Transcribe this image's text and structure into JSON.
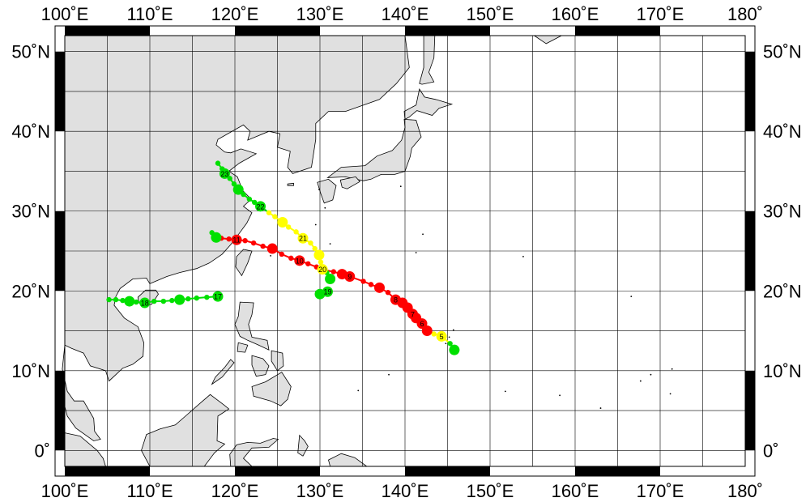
{
  "map": {
    "lon_range": [
      100,
      180
    ],
    "lat_range": [
      -2,
      52
    ],
    "grid_step_deg": 5,
    "label_step_deg": 10,
    "colors": {
      "land": "#e0e0e0",
      "ocean": "#ffffff",
      "grid": "#000000"
    },
    "top_lon_labels": [
      "100˚E",
      "110˚E",
      "120˚E",
      "130˚E",
      "140˚E",
      "150˚E",
      "160˚E",
      "170˚E",
      "180˚"
    ],
    "bottom_lon_labels": [
      "100˚E",
      "110˚E",
      "120˚E",
      "130˚E",
      "140˚E",
      "150˚E",
      "160˚E",
      "170˚E",
      "180˚"
    ],
    "left_lat_labels": [
      "50˚N",
      "40˚N",
      "30˚N",
      "20˚N",
      "10˚N",
      "0˚"
    ],
    "right_lat_labels": [
      "50˚N",
      "40˚N",
      "30˚N",
      "20˚N",
      "10˚N",
      "0˚"
    ]
  },
  "legend_colors": {
    "green": "#00e000",
    "yellow": "#ffff00",
    "red": "#ff0000"
  },
  "tracks": [
    {
      "points": [
        {
          "lon": 145.8,
          "lat": 12.6,
          "c": "green",
          "size": "big"
        },
        {
          "lon": 145.3,
          "lat": 13.4,
          "c": "green",
          "size": "small"
        },
        {
          "lon": 144.3,
          "lat": 14.3,
          "c": "yellow",
          "size": "big",
          "label": "5"
        },
        {
          "lon": 143.4,
          "lat": 14.6,
          "c": "yellow",
          "size": "small"
        },
        {
          "lon": 142.6,
          "lat": 15.0,
          "c": "red",
          "size": "big"
        },
        {
          "lon": 142.0,
          "lat": 15.9,
          "c": "red",
          "size": "big",
          "label": "6"
        },
        {
          "lon": 141.3,
          "lat": 16.6,
          "c": "red",
          "size": "big"
        },
        {
          "lon": 140.9,
          "lat": 17.1,
          "c": "red",
          "size": "big",
          "label": "7"
        },
        {
          "lon": 140.3,
          "lat": 17.9,
          "c": "red",
          "size": "big"
        },
        {
          "lon": 139.7,
          "lat": 18.5,
          "c": "red",
          "size": "big"
        },
        {
          "lon": 138.9,
          "lat": 18.9,
          "c": "red",
          "size": "big",
          "label": "8"
        },
        {
          "lon": 138.0,
          "lat": 19.8,
          "c": "red",
          "size": "small"
        },
        {
          "lon": 137.0,
          "lat": 20.4,
          "c": "red",
          "size": "big"
        },
        {
          "lon": 136.0,
          "lat": 20.8,
          "c": "red",
          "size": "small"
        },
        {
          "lon": 135.1,
          "lat": 21.2,
          "c": "red",
          "size": "small"
        },
        {
          "lon": 133.5,
          "lat": 21.8,
          "c": "red",
          "size": "big",
          "label": "9"
        },
        {
          "lon": 132.6,
          "lat": 22.1,
          "c": "red",
          "size": "big"
        },
        {
          "lon": 131.6,
          "lat": 22.4,
          "c": "red",
          "size": "small"
        },
        {
          "lon": 130.6,
          "lat": 22.6,
          "c": "red",
          "size": "small"
        },
        {
          "lon": 129.6,
          "lat": 23.0,
          "c": "red",
          "size": "small"
        },
        {
          "lon": 128.6,
          "lat": 23.4,
          "c": "red",
          "size": "small"
        },
        {
          "lon": 127.6,
          "lat": 23.8,
          "c": "red",
          "size": "big",
          "label": "10"
        },
        {
          "lon": 126.6,
          "lat": 24.1,
          "c": "red",
          "size": "small"
        },
        {
          "lon": 125.5,
          "lat": 24.6,
          "c": "red",
          "size": "small"
        },
        {
          "lon": 124.4,
          "lat": 25.3,
          "c": "red",
          "size": "big"
        },
        {
          "lon": 123.3,
          "lat": 25.6,
          "c": "red",
          "size": "small"
        },
        {
          "lon": 122.2,
          "lat": 26.0,
          "c": "red",
          "size": "small"
        },
        {
          "lon": 121.2,
          "lat": 26.3,
          "c": "red",
          "size": "small"
        },
        {
          "lon": 120.2,
          "lat": 26.4,
          "c": "red",
          "size": "big",
          "label": "11"
        },
        {
          "lon": 119.3,
          "lat": 26.5,
          "c": "red",
          "size": "small"
        },
        {
          "lon": 118.4,
          "lat": 26.6,
          "c": "red",
          "size": "small"
        },
        {
          "lon": 117.8,
          "lat": 26.7,
          "c": "green",
          "size": "big"
        },
        {
          "lon": 117.3,
          "lat": 27.3,
          "c": "green",
          "size": "small"
        }
      ]
    },
    {
      "points": [
        {
          "lon": 131.2,
          "lat": 21.5,
          "c": "green",
          "size": "big"
        },
        {
          "lon": 130.8,
          "lat": 22.3,
          "c": "green",
          "size": "small"
        },
        {
          "lon": 130.3,
          "lat": 22.7,
          "c": "yellow",
          "size": "big",
          "label": "20"
        },
        {
          "lon": 130.1,
          "lat": 23.6,
          "c": "yellow",
          "size": "small"
        },
        {
          "lon": 129.9,
          "lat": 24.5,
          "c": "yellow",
          "size": "big"
        },
        {
          "lon": 129.4,
          "lat": 25.3,
          "c": "yellow",
          "size": "small"
        },
        {
          "lon": 128.9,
          "lat": 26.0,
          "c": "yellow",
          "size": "small"
        },
        {
          "lon": 128.0,
          "lat": 26.6,
          "c": "yellow",
          "size": "big",
          "label": "21"
        },
        {
          "lon": 127.2,
          "lat": 27.4,
          "c": "yellow",
          "size": "small"
        },
        {
          "lon": 126.3,
          "lat": 28.0,
          "c": "yellow",
          "size": "small"
        },
        {
          "lon": 125.6,
          "lat": 28.6,
          "c": "yellow",
          "size": "big"
        },
        {
          "lon": 124.7,
          "lat": 29.3,
          "c": "yellow",
          "size": "small"
        },
        {
          "lon": 124.0,
          "lat": 29.8,
          "c": "yellow",
          "size": "small"
        },
        {
          "lon": 123.0,
          "lat": 30.6,
          "c": "green",
          "size": "big",
          "label": "22"
        },
        {
          "lon": 122.3,
          "lat": 31.1,
          "c": "green",
          "size": "small"
        },
        {
          "lon": 121.7,
          "lat": 31.5,
          "c": "green",
          "size": "small"
        },
        {
          "lon": 121.0,
          "lat": 32.1,
          "c": "green",
          "size": "small"
        },
        {
          "lon": 120.4,
          "lat": 32.7,
          "c": "green",
          "size": "big"
        },
        {
          "lon": 119.9,
          "lat": 33.4,
          "c": "green",
          "size": "small"
        },
        {
          "lon": 119.4,
          "lat": 34.1,
          "c": "green",
          "size": "small"
        },
        {
          "lon": 118.8,
          "lat": 34.7,
          "c": "green",
          "size": "big",
          "label": "23"
        },
        {
          "lon": 118.5,
          "lat": 35.3,
          "c": "green",
          "size": "small"
        },
        {
          "lon": 118.0,
          "lat": 36.0,
          "c": "green",
          "size": "small"
        }
      ]
    },
    {
      "points": [
        {
          "lon": 130.9,
          "lat": 19.9,
          "c": "green",
          "size": "big",
          "label": "19"
        },
        {
          "lon": 130.0,
          "lat": 19.6,
          "c": "green",
          "size": "big"
        }
      ]
    },
    {
      "points": [
        {
          "lon": 118.0,
          "lat": 19.3,
          "c": "green",
          "size": "big",
          "label": "17"
        },
        {
          "lon": 116.7,
          "lat": 19.2,
          "c": "green",
          "size": "small"
        },
        {
          "lon": 115.5,
          "lat": 19.1,
          "c": "green",
          "size": "small"
        },
        {
          "lon": 114.5,
          "lat": 19.0,
          "c": "green",
          "size": "small"
        },
        {
          "lon": 113.5,
          "lat": 18.9,
          "c": "green",
          "size": "big"
        },
        {
          "lon": 112.6,
          "lat": 18.8,
          "c": "green",
          "size": "small"
        },
        {
          "lon": 111.6,
          "lat": 18.7,
          "c": "green",
          "size": "small"
        },
        {
          "lon": 110.5,
          "lat": 18.7,
          "c": "green",
          "size": "small"
        },
        {
          "lon": 109.4,
          "lat": 18.5,
          "c": "green",
          "size": "big",
          "label": "18"
        },
        {
          "lon": 108.4,
          "lat": 18.6,
          "c": "green",
          "size": "small"
        },
        {
          "lon": 107.6,
          "lat": 18.7,
          "c": "green",
          "size": "big"
        },
        {
          "lon": 106.8,
          "lat": 18.8,
          "c": "green",
          "size": "small"
        },
        {
          "lon": 106.0,
          "lat": 18.9,
          "c": "green",
          "size": "small"
        },
        {
          "lon": 105.2,
          "lat": 18.9,
          "c": "green",
          "size": "small"
        }
      ]
    }
  ]
}
